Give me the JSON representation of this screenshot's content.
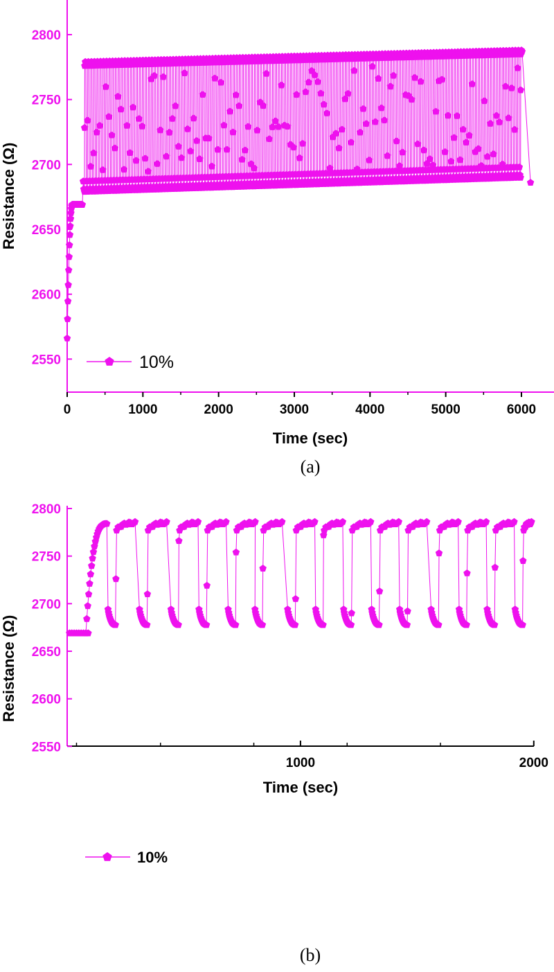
{
  "colors": {
    "series": "#ee11ee",
    "axis": "#ee11ee",
    "text": "#000000"
  },
  "chart_data": [
    {
      "type": "line",
      "panel_label": "(a)",
      "xlabel": "Time (sec)",
      "ylabel": "Resistance (Ω)",
      "xlim": [
        0,
        6500
      ],
      "ylim": [
        2535,
        2830
      ],
      "x_ticks": [
        "0",
        "1000",
        "2000",
        "3000",
        "4000",
        "5000",
        "6000"
      ],
      "y_ticks": [
        "2550",
        "2600",
        "2650",
        "2700",
        "2750",
        "2800"
      ],
      "marker": "pentagon",
      "series": [
        {
          "name": "10%",
          "baseline": {
            "t_start": 0,
            "t_end": 200,
            "from": 2566,
            "to": 2669
          },
          "cycles": {
            "t_start": 210,
            "t_end": 6000,
            "period": 40,
            "high_start": 2778,
            "high_end": 2787,
            "low_start": 2679,
            "low_end": 2690
          },
          "end_point": [
            6120,
            2686
          ]
        }
      ]
    },
    {
      "type": "line",
      "panel_label": "(b)",
      "xlabel": "Time (sec)",
      "ylabel": "Resistance (Ω)",
      "xlim": [
        0,
        2000
      ],
      "ylim": [
        2550,
        2800
      ],
      "x_ticks": [
        "1000",
        "2000"
      ],
      "y_ticks": [
        "2550",
        "2600",
        "2650",
        "2700",
        "2750",
        "2800"
      ],
      "marker": "pentagon",
      "series": [
        {
          "name": "10%",
          "baseline": {
            "t_start": 0,
            "t_end": 80,
            "value": 2669
          },
          "rise": {
            "t_start": 80,
            "t_end": 170,
            "from": 2669,
            "to": 2784
          },
          "cycle_starts": [
            175,
            310,
            445,
            565,
            690,
            805,
            945,
            1065,
            1185,
            1305,
            1425,
            1560,
            1680,
            1800,
            1920
          ],
          "cycle_period": 120,
          "high": 2785,
          "low": 2677,
          "cycle_midpoints": [
            2726,
            2710,
            2766,
            2719,
            2754,
            2737,
            2705,
            2772,
            2690,
            2713,
            2692,
            2753,
            2732,
            2738,
            2745
          ]
        }
      ]
    }
  ]
}
